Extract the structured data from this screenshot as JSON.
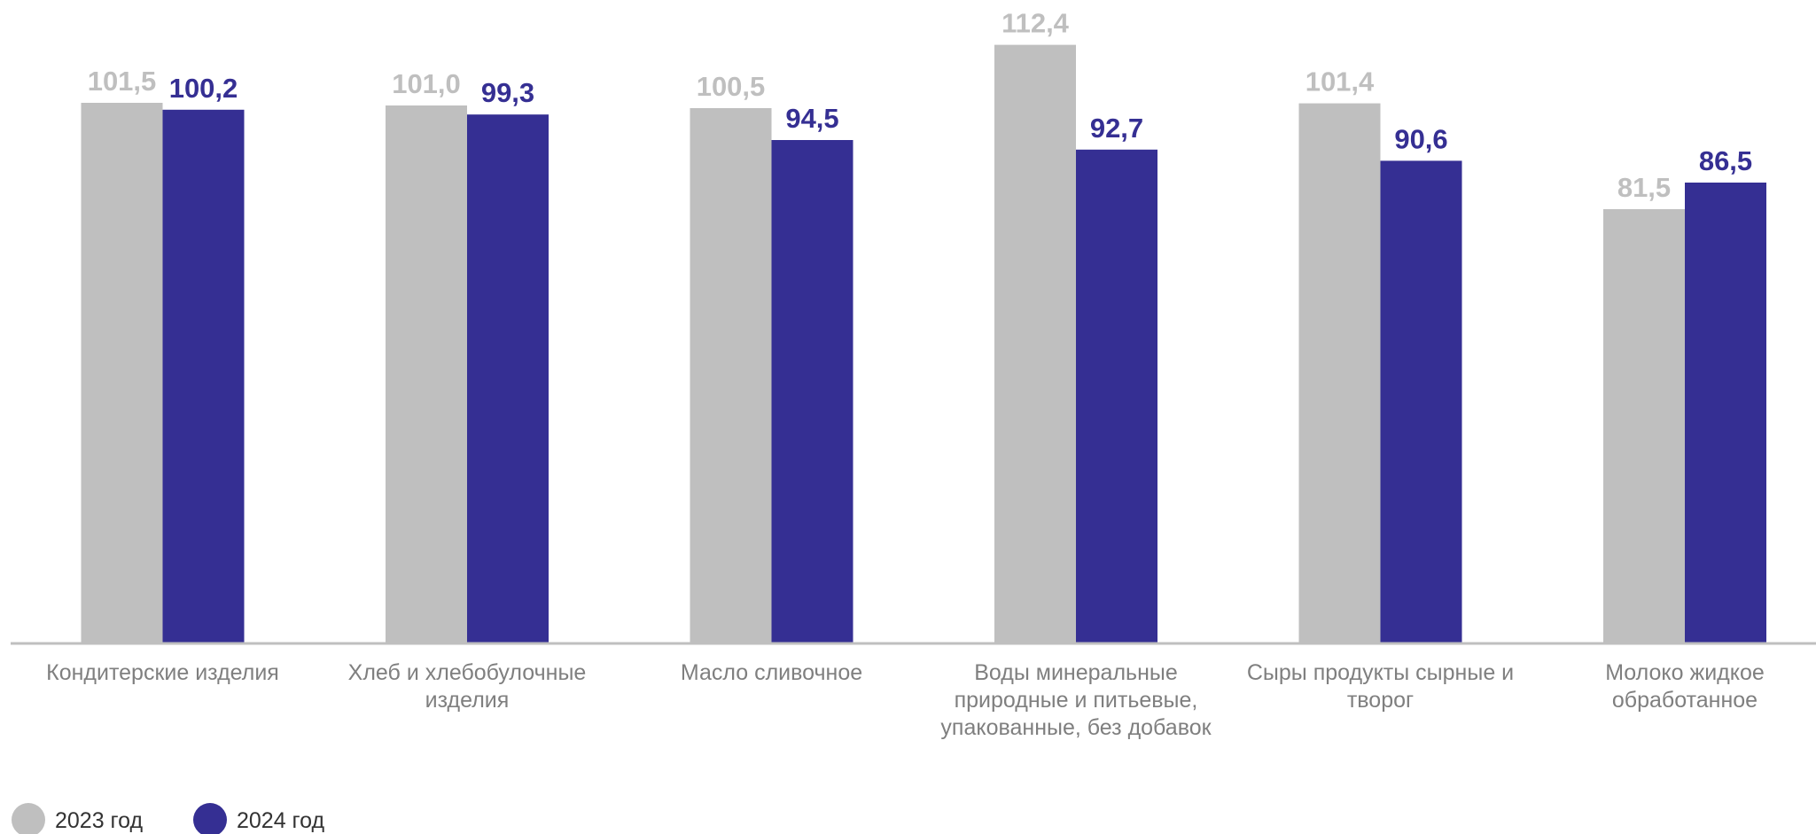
{
  "chart_data": {
    "type": "bar",
    "categories": [
      [
        "Кондитерские изделия"
      ],
      [
        "Хлеб и хлебобулочные",
        "изделия"
      ],
      [
        "Масло сливочное"
      ],
      [
        "Воды минеральные",
        "природные и питьевые,",
        "упакованные, без добавок"
      ],
      [
        "Сыры продукты сырные и",
        "творог"
      ],
      [
        "Молоко жидкое",
        "обработанное"
      ]
    ],
    "series": [
      {
        "name": "2023 год",
        "values": [
          101.5,
          101.0,
          100.5,
          112.4,
          101.4,
          81.5
        ],
        "labels": [
          "101,5",
          "101,0",
          "100,5",
          "112,4",
          "101,4",
          "81,5"
        ],
        "color": "#bfbfbf"
      },
      {
        "name": "2024 год",
        "values": [
          100.2,
          99.3,
          94.5,
          92.7,
          90.6,
          86.5
        ],
        "labels": [
          "100,2",
          "99,3",
          "94,5",
          "92,7",
          "90,6",
          "86,5"
        ],
        "color": "#352f93"
      }
    ],
    "ylim": [
      0,
      120
    ],
    "grid": false,
    "legend": "bottom-left",
    "axis_color": "#bfbfbf"
  }
}
